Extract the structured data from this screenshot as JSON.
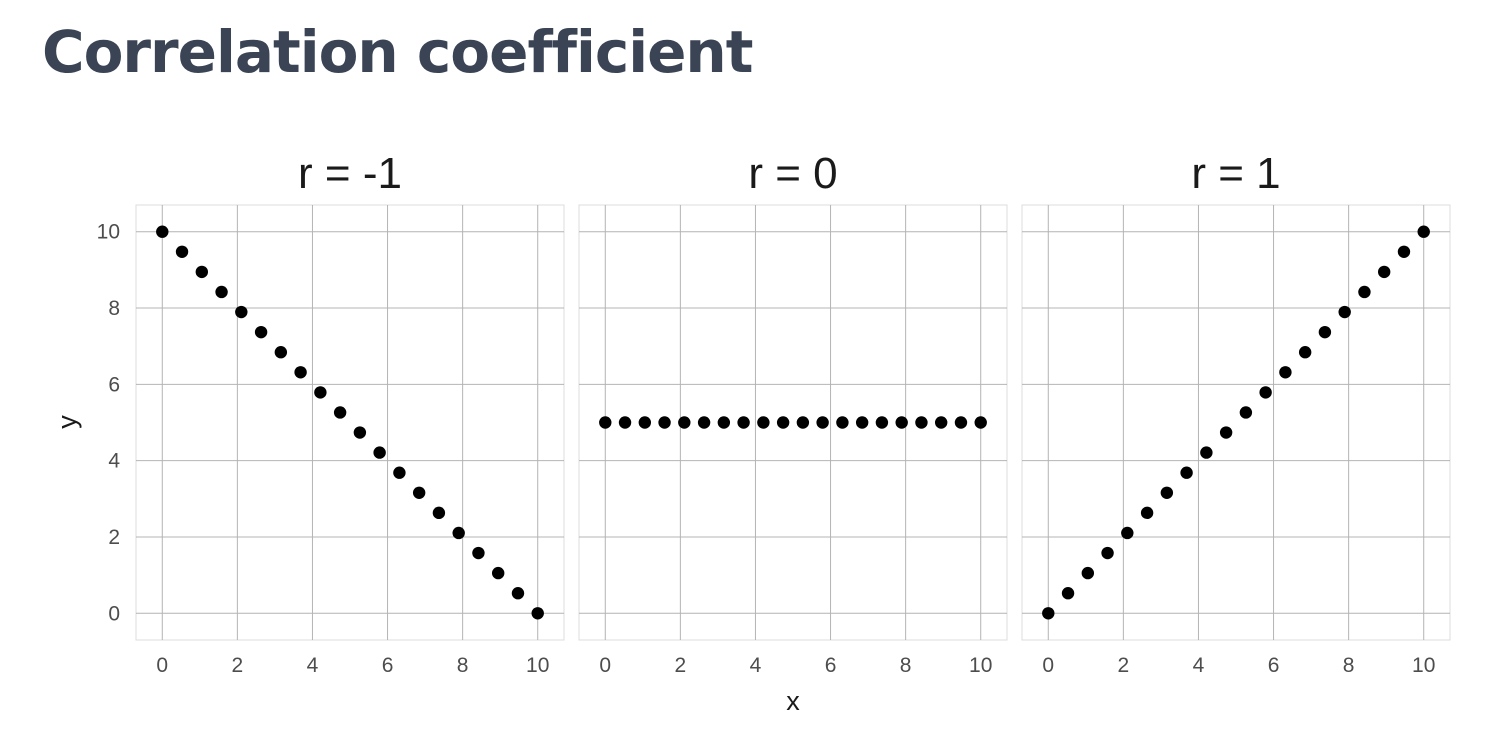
{
  "slide": {
    "title": "Correlation coefficient"
  },
  "chart_data": {
    "type": "scatter",
    "xlabel": "x",
    "ylabel": "y",
    "xlim": [
      -0.7,
      10.7
    ],
    "ylim": [
      -0.7,
      10.7
    ],
    "x_ticks": [
      0,
      2,
      4,
      6,
      8,
      10
    ],
    "y_ticks": [
      0,
      2,
      4,
      6,
      8,
      10
    ],
    "grid": true,
    "point_color": "#000000",
    "panels": [
      {
        "title": "r = -1",
        "x": [
          0,
          0.526,
          1.053,
          1.579,
          2.105,
          2.632,
          3.158,
          3.684,
          4.211,
          4.737,
          5.263,
          5.789,
          6.316,
          6.842,
          7.368,
          7.895,
          8.421,
          8.947,
          9.474,
          10
        ],
        "y": [
          10,
          9.474,
          8.947,
          8.421,
          7.895,
          7.368,
          6.842,
          6.316,
          5.789,
          5.263,
          4.737,
          4.211,
          3.684,
          3.158,
          2.632,
          2.105,
          1.579,
          1.053,
          0.526,
          0
        ]
      },
      {
        "title": "r = 0",
        "x": [
          0,
          0.526,
          1.053,
          1.579,
          2.105,
          2.632,
          3.158,
          3.684,
          4.211,
          4.737,
          5.263,
          5.789,
          6.316,
          6.842,
          7.368,
          7.895,
          8.421,
          8.947,
          9.474,
          10
        ],
        "y": [
          5,
          5,
          5,
          5,
          5,
          5,
          5,
          5,
          5,
          5,
          5,
          5,
          5,
          5,
          5,
          5,
          5,
          5,
          5,
          5
        ]
      },
      {
        "title": "r = 1",
        "x": [
          0,
          0.526,
          1.053,
          1.579,
          2.105,
          2.632,
          3.158,
          3.684,
          4.211,
          4.737,
          5.263,
          5.789,
          6.316,
          6.842,
          7.368,
          7.895,
          8.421,
          8.947,
          9.474,
          10
        ],
        "y": [
          0,
          0.526,
          1.053,
          1.579,
          2.105,
          2.632,
          3.158,
          3.684,
          4.211,
          4.737,
          5.263,
          5.789,
          6.316,
          6.842,
          7.368,
          7.895,
          8.421,
          8.947,
          9.474,
          10
        ]
      }
    ]
  }
}
